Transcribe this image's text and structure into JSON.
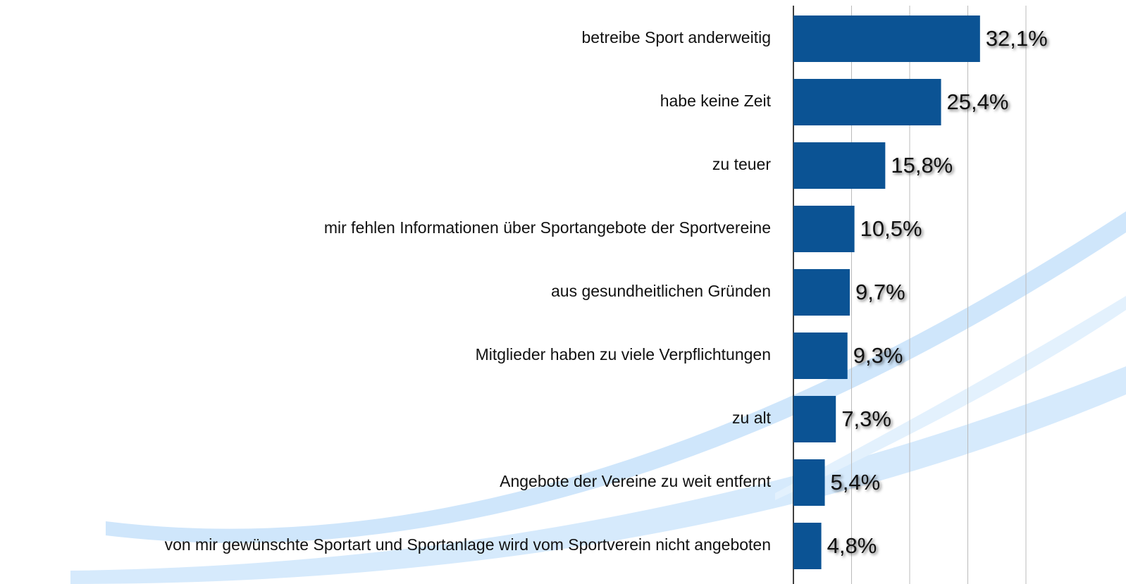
{
  "chart_data": {
    "type": "barh",
    "categories": [
      "betreibe Sport anderweitig",
      "habe keine Zeit",
      "zu teuer",
      "mir fehlen Informationen über Sportangebote der Sportvereine",
      "aus gesundheitlichen Gründen",
      "Mitglieder haben zu viele Verpflichtungen",
      "zu alt",
      "Angebote der Vereine zu weit entfernt",
      "von mir gewünschte Sportart und Sportanlage wird vom Sportverein nicht angeboten"
    ],
    "values": [
      32.1,
      25.4,
      15.8,
      10.5,
      9.7,
      9.3,
      7.3,
      5.4,
      4.8
    ],
    "value_labels": [
      "32,1%",
      "25,4%",
      "15,8%",
      "10,5%",
      "9,7%",
      "9,3%",
      "7,3%",
      "5,4%",
      "4,8%"
    ],
    "color": "#0b5394",
    "xlim": [
      0,
      40
    ],
    "xticks": [
      0,
      10,
      20,
      30,
      40
    ],
    "grid": true
  }
}
